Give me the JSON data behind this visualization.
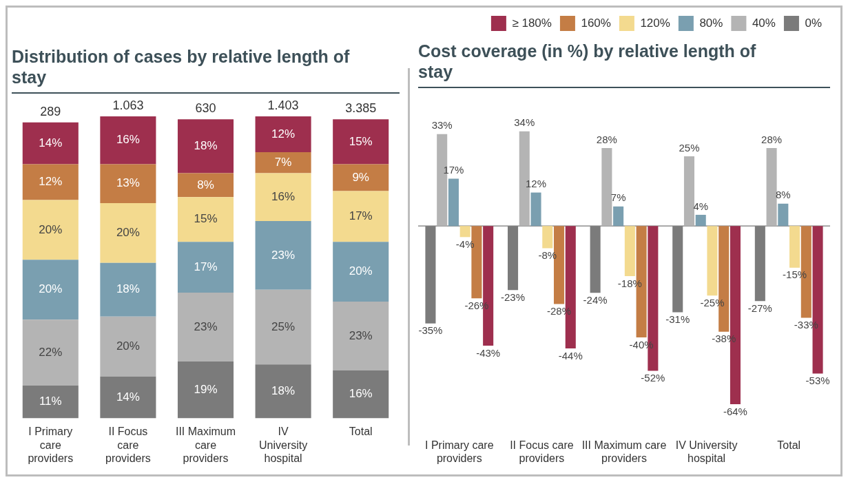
{
  "chart_data": [
    {
      "type": "bar",
      "title": "Distribution of cases by relative length of stay",
      "categories": [
        "I Primary care providers",
        "II Focus care providers",
        "III Maximum care providers",
        "IV University hospital",
        "Total"
      ],
      "stacked": true,
      "tick_labels": "x",
      "series": [
        {
          "color": "#7b7b7b",
          "values": [
            11,
            14,
            19,
            18,
            16
          ],
          "value_labels": [
            "11%",
            "14%",
            "19%",
            "18%",
            "16%"
          ]
        },
        {
          "color": "#b4b4b4",
          "values": [
            22,
            20,
            23,
            25,
            23
          ],
          "value_labels": [
            "22%",
            "20%",
            "23%",
            "25%",
            "23%"
          ]
        },
        {
          "color": "#7a9fb0",
          "values": [
            20,
            18,
            17,
            23,
            20
          ],
          "value_labels": [
            "20%",
            "18%",
            "17%",
            "23%",
            "20%"
          ]
        },
        {
          "color": "#f3da8f",
          "values": [
            20,
            20,
            15,
            16,
            17
          ],
          "value_labels": [
            "20%",
            "20%",
            "15%",
            "16%",
            "17%"
          ]
        },
        {
          "color": "#c47d45",
          "values": [
            12,
            13,
            8,
            7,
            9
          ],
          "value_labels": [
            "12%",
            "13%",
            "8%",
            "7%",
            "9%"
          ]
        },
        {
          "color": "#9e2f4e",
          "values": [
            14,
            16,
            18,
            12,
            15
          ],
          "value_labels": [
            "14%",
            "16%",
            "18%",
            "12%",
            "15%"
          ]
        }
      ],
      "annotations": [
        "289",
        "1.063",
        "630",
        "1.403",
        "3.385"
      ]
    },
    {
      "type": "bar",
      "title": "Cost coverage (in %) by relative length of stay",
      "categories": [
        "I Primary care providers",
        "II Focus care providers",
        "III Maximum care providers",
        "IV University hospital",
        "Total"
      ],
      "tick_labels": "x",
      "legend": "top right",
      "series": [
        {
          "name": "0%",
          "color": "#7b7b7b",
          "values": [
            -35,
            -23,
            -24,
            -31,
            -27
          ],
          "value_labels": [
            "-35%",
            "-23%",
            "-24%",
            "-31%",
            "-27%"
          ]
        },
        {
          "name": "40%",
          "color": "#b4b4b4",
          "values": [
            33,
            34,
            28,
            25,
            28
          ],
          "value_labels": [
            "33%",
            "34%",
            "28%",
            "25%",
            "28%"
          ]
        },
        {
          "name": "80%",
          "color": "#7a9fb0",
          "values": [
            17,
            12,
            7,
            4,
            8
          ],
          "value_labels": [
            "17%",
            "12%",
            "7%",
            "4%",
            "8%"
          ]
        },
        {
          "name": "120%",
          "color": "#f3da8f",
          "values": [
            -4,
            -8,
            -18,
            -25,
            -15
          ],
          "value_labels": [
            "-4%",
            "-8%",
            "-18%",
            "-25%",
            "-15%"
          ]
        },
        {
          "name": "160%",
          "color": "#c47d45",
          "values": [
            -26,
            -28,
            -40,
            -38,
            -33
          ],
          "value_labels": [
            "-26%",
            "-28%",
            "-40%",
            "-38%",
            "-33%"
          ]
        },
        {
          "name": "≥ 180%",
          "color": "#9e2f4e",
          "values": [
            -43,
            -44,
            -52,
            -64,
            -53
          ],
          "value_labels": [
            "-43%",
            "-44%",
            "-52%",
            "-64%",
            "-53%"
          ]
        }
      ]
    }
  ]
}
